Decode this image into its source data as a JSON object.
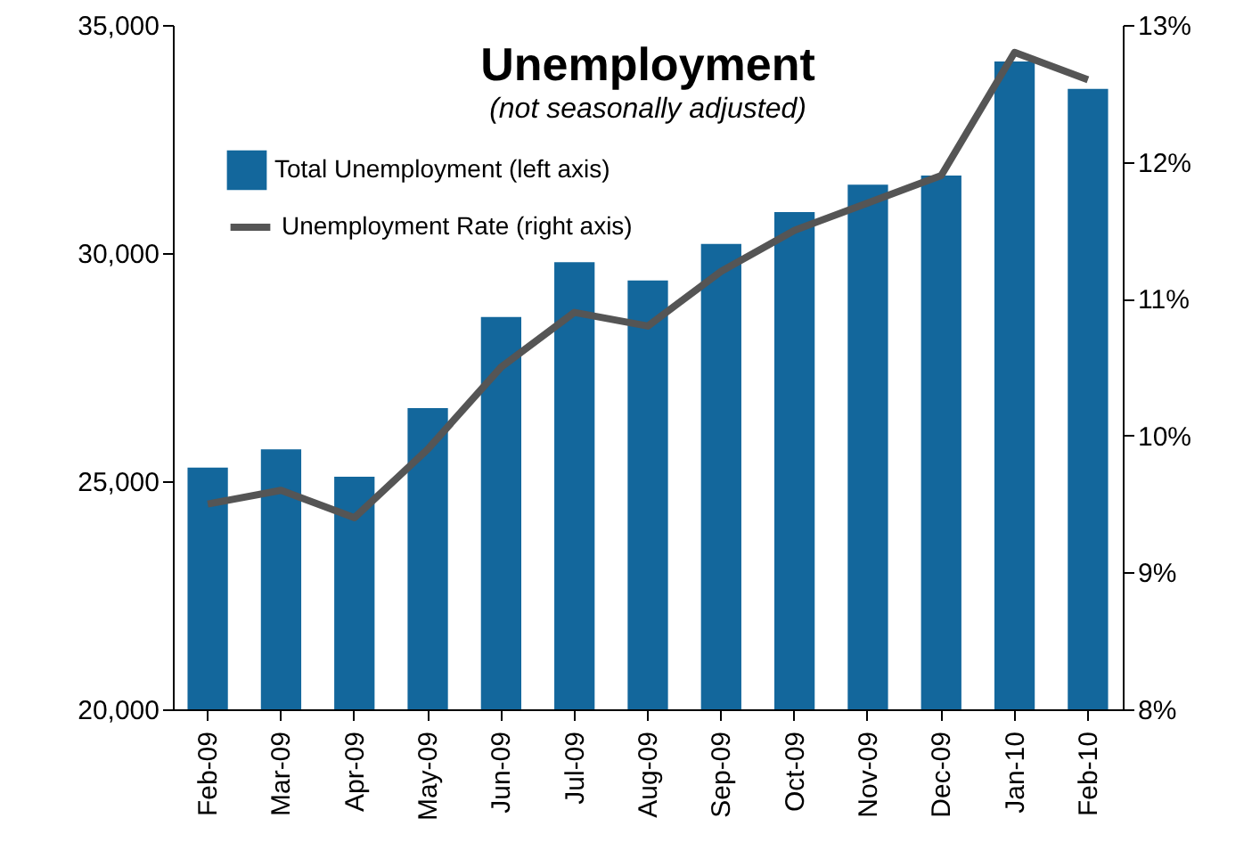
{
  "chart_data": {
    "type": "bar",
    "title": "Unemployment",
    "subtitle": "(not seasonally adjusted)",
    "categories": [
      "Feb-09",
      "Mar-09",
      "Apr-09",
      "May-09",
      "Jun-09",
      "Jul-09",
      "Aug-09",
      "Sep-09",
      "Oct-09",
      "Nov-09",
      "Dec-09",
      "Jan-10",
      "Feb-10"
    ],
    "series": [
      {
        "name": "Total Unemployment (left axis)",
        "color": "#13679c",
        "values": [
          25300,
          25700,
          25100,
          26600,
          28600,
          29800,
          29400,
          30200,
          30900,
          31500,
          31700,
          34200,
          33600
        ]
      },
      {
        "name": "Unemployment Rate (right axis)",
        "type": "line",
        "axis": "y2",
        "color": "#555555",
        "values": [
          9.5,
          9.6,
          9.4,
          9.9,
          10.5,
          10.9,
          10.8,
          11.2,
          11.5,
          11.7,
          11.9,
          12.8,
          12.6
        ]
      }
    ],
    "ylim": [
      20000,
      35000
    ],
    "yticks": [
      {
        "value": 20000,
        "label": "20,000"
      },
      {
        "value": 25000,
        "label": "25,000"
      },
      {
        "value": 30000,
        "label": "30,000"
      },
      {
        "value": 35000,
        "label": "35,000"
      }
    ],
    "y2lim": [
      8,
      13
    ],
    "y2ticks": [
      {
        "value": 8,
        "label": "8%"
      },
      {
        "value": 9,
        "label": "9%"
      },
      {
        "value": 10,
        "label": "10%"
      },
      {
        "value": 11,
        "label": "11%"
      },
      {
        "value": 12,
        "label": "12%"
      },
      {
        "value": 13,
        "label": "13%"
      }
    ],
    "legend": "top left",
    "grid": false,
    "marker": "none",
    "line_style": "solid"
  }
}
